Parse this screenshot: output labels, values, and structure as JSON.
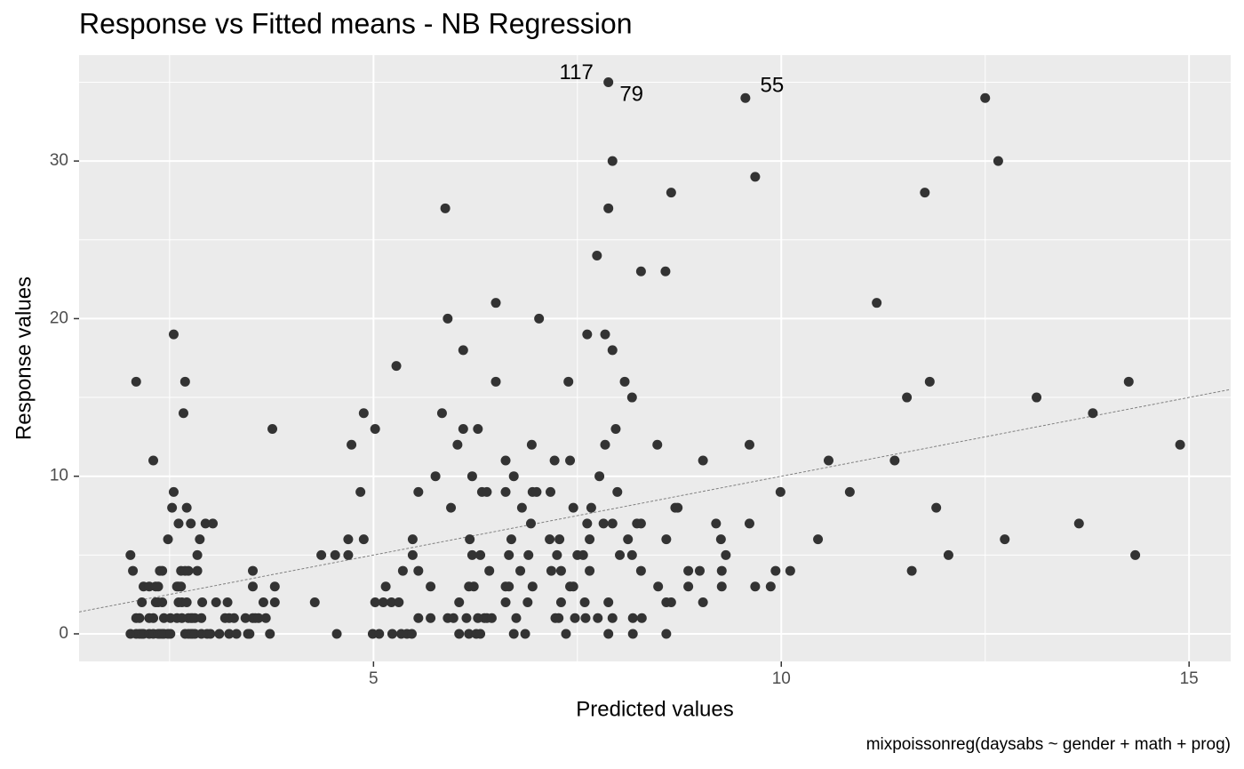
{
  "chart_data": {
    "type": "scatter",
    "title": "Response vs Fitted means - NB Regression",
    "x_label": "Predicted values",
    "y_label": "Response values",
    "caption": "mixpoissonreg(daysabs ~ gender + math + prog)",
    "xlim": [
      1.39,
      15.51
    ],
    "ylim": [
      -1.75,
      36.72
    ],
    "xticks": [
      5,
      10,
      15
    ],
    "yticks": [
      0,
      10,
      20,
      30
    ],
    "x_minor_grid": [
      2.5,
      7.5,
      12.5
    ],
    "y_minor_grid": [
      5,
      15,
      25,
      35
    ],
    "grid": true,
    "identity_line": true,
    "color": "#333333",
    "series": [
      {
        "color": "#333333",
        "x": [
          2.02,
          2.02,
          2.05,
          2.09,
          2.09,
          2.09,
          2.13,
          2.13,
          2.16,
          2.16,
          2.18,
          2.18,
          2.25,
          2.25,
          2.25,
          2.3,
          2.3,
          2.3,
          2.33,
          2.33,
          2.36,
          2.36,
          2.36,
          2.38,
          2.38,
          2.41,
          2.41,
          2.41,
          2.43,
          2.43,
          2.48,
          2.48,
          2.51,
          2.51,
          2.53,
          2.55,
          2.55,
          2.59,
          2.59,
          2.61,
          2.61,
          2.61,
          2.64,
          2.64,
          2.65,
          2.65,
          2.67,
          2.69,
          2.69,
          2.69,
          2.71,
          2.71,
          2.73,
          2.73,
          2.73,
          2.76,
          2.76,
          2.76,
          2.78,
          2.78,
          2.81,
          2.81,
          2.84,
          2.84,
          2.87,
          2.89,
          2.89,
          2.9,
          2.94,
          2.96,
          3.0,
          3.03,
          3.07,
          3.11,
          3.18,
          3.21,
          3.23,
          3.23,
          3.29,
          3.32,
          3.43,
          3.46,
          3.48,
          3.52,
          3.52,
          3.52,
          3.55,
          3.59,
          3.65,
          3.68,
          3.73,
          3.76,
          3.79,
          3.79,
          4.28,
          4.36,
          4.53,
          4.55,
          4.69,
          4.69,
          4.73,
          4.84,
          4.88,
          4.88,
          4.99,
          5.02,
          5.02,
          5.07,
          5.12,
          5.15,
          5.22,
          5.23,
          5.28,
          5.31,
          5.34,
          5.36,
          5.41,
          5.47,
          5.48,
          5.48,
          5.55,
          5.55,
          5.55,
          5.7,
          5.7,
          5.76,
          5.84,
          5.88,
          5.91,
          5.91,
          5.95,
          5.98,
          6.03,
          6.05,
          6.05,
          6.1,
          6.1,
          6.14,
          6.17,
          6.17,
          6.18,
          6.21,
          6.21,
          6.23,
          6.26,
          6.28,
          6.28,
          6.31,
          6.31,
          6.33,
          6.36,
          6.39,
          6.39,
          6.42,
          6.45,
          6.5,
          6.5,
          6.62,
          6.62,
          6.62,
          6.62,
          6.66,
          6.66,
          6.69,
          6.72,
          6.72,
          6.75,
          6.8,
          6.82,
          6.86,
          6.89,
          6.9,
          6.93,
          6.94,
          6.95,
          6.95,
          7.0,
          7.03,
          7.16,
          7.17,
          7.18,
          7.22,
          7.23,
          7.25,
          7.27,
          7.28,
          7.3,
          7.3,
          7.36,
          7.39,
          7.41,
          7.41,
          7.45,
          7.45,
          7.47,
          7.5,
          7.57,
          7.59,
          7.6,
          7.62,
          7.62,
          7.65,
          7.65,
          7.67,
          7.74,
          7.75,
          7.77,
          7.82,
          7.84,
          7.84,
          7.88,
          7.88,
          7.88,
          7.88,
          7.93,
          7.93,
          7.93,
          7.93,
          7.97,
          7.99,
          8.02,
          8.08,
          8.12,
          8.17,
          8.17,
          8.18,
          8.18,
          8.23,
          8.28,
          8.28,
          8.28,
          8.29,
          8.48,
          8.49,
          8.58,
          8.59,
          8.59,
          8.59,
          8.65,
          8.65,
          8.7,
          8.73,
          8.86,
          8.86,
          9.0,
          9.04,
          9.04,
          9.2,
          9.26,
          9.27,
          9.27,
          9.32,
          9.56,
          9.61,
          9.61,
          9.68,
          9.68,
          9.87,
          9.93,
          9.99,
          10.11,
          10.45,
          10.58,
          10.84,
          11.17,
          11.39,
          11.54,
          11.6,
          11.76,
          11.82,
          11.9,
          12.05,
          12.5,
          12.66,
          12.74,
          13.13,
          13.65,
          13.82,
          14.26,
          14.34,
          14.89
        ],
        "values": [
          5,
          0,
          4,
          16,
          1,
          0,
          1,
          0,
          2,
          0,
          3,
          0,
          3,
          1,
          0,
          11,
          1,
          0,
          3,
          2,
          3,
          2,
          0,
          4,
          0,
          4,
          2,
          0,
          1,
          0,
          6,
          0,
          1,
          0,
          8,
          19,
          9,
          1,
          3,
          7,
          3,
          2,
          4,
          3,
          2,
          1,
          14,
          16,
          4,
          0,
          8,
          2,
          4,
          1,
          0,
          7,
          1,
          0,
          0,
          1,
          0,
          1,
          4,
          5,
          6,
          1,
          0,
          2,
          7,
          0,
          0,
          7,
          2,
          0,
          1,
          2,
          1,
          0,
          1,
          0,
          1,
          0,
          0,
          4,
          3,
          1,
          1,
          1,
          2,
          1,
          0,
          13,
          3,
          2,
          2,
          5,
          5,
          0,
          5,
          6,
          12,
          9,
          14,
          6,
          0,
          13,
          2,
          0,
          2,
          3,
          2,
          0,
          17,
          2,
          0,
          4,
          0,
          0,
          6,
          5,
          9,
          4,
          1,
          3,
          1,
          10,
          14,
          27,
          20,
          1,
          8,
          1,
          12,
          2,
          0,
          13,
          18,
          1,
          3,
          0,
          6,
          10,
          5,
          3,
          0,
          13,
          1,
          5,
          0,
          9,
          1,
          9,
          1,
          4,
          1,
          21,
          16,
          11,
          9,
          3,
          2,
          5,
          3,
          6,
          10,
          0,
          1,
          4,
          8,
          0,
          2,
          5,
          7,
          12,
          9,
          3,
          9,
          20,
          6,
          9,
          4,
          11,
          1,
          5,
          1,
          6,
          4,
          2,
          0,
          16,
          11,
          3,
          8,
          3,
          1,
          5,
          5,
          2,
          1,
          19,
          7,
          6,
          4,
          8,
          24,
          1,
          10,
          7,
          19,
          12,
          35,
          27,
          2,
          0,
          30,
          18,
          7,
          1,
          13,
          9,
          5,
          16,
          6,
          15,
          5,
          1,
          0,
          7,
          23,
          7,
          4,
          1,
          12,
          3,
          23,
          6,
          2,
          0,
          28,
          2,
          8,
          8,
          4,
          3,
          4,
          2,
          11,
          7,
          6,
          4,
          3,
          5,
          34,
          12,
          7,
          29,
          3,
          3,
          4,
          9,
          4,
          6,
          11,
          9,
          21,
          11,
          15,
          4,
          28,
          16,
          8,
          5,
          34,
          30,
          6,
          15,
          7,
          14,
          16,
          5,
          12
        ]
      }
    ],
    "point_labels": [
      {
        "label": "117",
        "x": 7.88,
        "y": 35
      },
      {
        "label": "79",
        "x": 7.88,
        "y": 34
      },
      {
        "label": "55",
        "x": 9.56,
        "y": 34
      }
    ]
  }
}
